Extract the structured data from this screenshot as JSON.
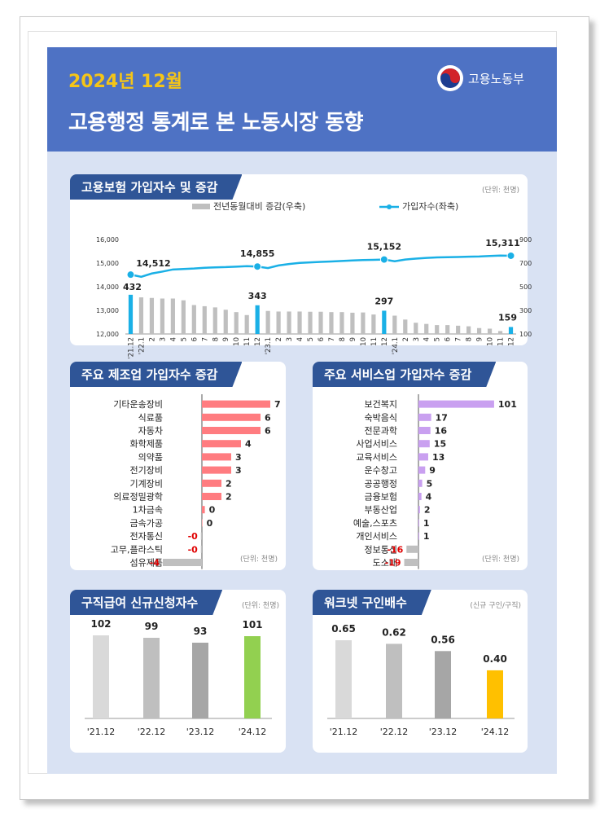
{
  "header": {
    "date": "2024년 12월",
    "title": "고용행정 통계로 본 노동시장 동향",
    "ministry": "고용노동부"
  },
  "colors": {
    "header_bg": "#4e72c4",
    "body_bg": "#d9e2f3",
    "tag_bg": "#2f5597",
    "date_yellow": "#f4c518",
    "line_blue": "#1ab0e6",
    "bar_gray": "#bfbfbf",
    "highlight_blue": "#1ab0e6",
    "mfg_red": "#ff7c80",
    "svc_purple": "#c9a0f0",
    "neg_gray": "#bfbfbf",
    "green": "#92d050",
    "orange": "#ffc000"
  },
  "sections": {
    "insurance": {
      "title": "고용보험 가입자수 및 증감",
      "unit": "(단위: 천명)"
    },
    "manufacturing": {
      "title": "주요 제조업 가입자수 증감",
      "unit": "(단위: 천명)"
    },
    "services": {
      "title": "주요 서비스업 가입자수 증감",
      "unit": "(단위: 천명)"
    },
    "jobseeker": {
      "title": "구직급여 신규신청자수",
      "unit": "(단위: 천명)"
    },
    "worknet": {
      "title": "워크넷 구인배수",
      "unit": "(신규 구인/구직)"
    }
  },
  "chart_data": [
    {
      "type": "bar+line",
      "title": "고용보험 가입자수 및 증감",
      "legend": [
        "전년동월대비 증감(우축)",
        "가입자수(좌축)"
      ],
      "x": [
        "'21.12",
        "'22.1",
        "2",
        "3",
        "4",
        "5",
        "6",
        "7",
        "8",
        "9",
        "10",
        "11",
        "12",
        "'23.1",
        "2",
        "3",
        "4",
        "5",
        "6",
        "7",
        "8",
        "9",
        "10",
        "11",
        "12",
        "'24.1",
        "2",
        "3",
        "4",
        "5",
        "6",
        "7",
        "8",
        "9",
        "10",
        "11",
        "12"
      ],
      "left_axis": {
        "ticks": [
          "16,000",
          "15,000",
          "14,000",
          "13,000",
          "12,000"
        ],
        "range": [
          12000,
          16000
        ]
      },
      "right_axis": {
        "ticks": [
          "900",
          "700",
          "500",
          "300",
          "100"
        ],
        "range": [
          100,
          900
        ]
      },
      "increase": [
        432,
        410,
        405,
        400,
        400,
        385,
        345,
        335,
        325,
        305,
        285,
        260,
        343,
        295,
        290,
        290,
        290,
        288,
        288,
        285,
        285,
        280,
        282,
        265,
        297,
        255,
        222,
        195,
        185,
        175,
        175,
        170,
        165,
        150,
        145,
        125,
        159
      ],
      "subscribers": [
        14512,
        14420,
        14560,
        14640,
        14730,
        14750,
        14770,
        14800,
        14820,
        14830,
        14850,
        14870,
        14855,
        14790,
        14900,
        14960,
        15010,
        15030,
        15050,
        15070,
        15090,
        15110,
        15130,
        15140,
        15152,
        15080,
        15150,
        15190,
        15220,
        15240,
        15250,
        15260,
        15270,
        15280,
        15300,
        15320,
        15311
      ],
      "labels": [
        {
          "text": "14,512"
        },
        {
          "text": "14,855"
        },
        {
          "text": "15,152"
        },
        {
          "text": "15,311"
        },
        {
          "text": "432"
        },
        {
          "text": "343"
        },
        {
          "text": "297"
        },
        {
          "text": "159"
        }
      ]
    },
    {
      "type": "bar",
      "title": "주요 제조업 가입자수 증감",
      "categories": [
        "기타운송장비",
        "식료품",
        "자동차",
        "화학제품",
        "의약품",
        "전기장비",
        "기계장비",
        "의료정밀광학",
        "1차금속",
        "금속가공",
        "전자통신",
        "고무,플라스틱",
        "섬유제품"
      ],
      "values": [
        7,
        6,
        6,
        4,
        3,
        3,
        2,
        2,
        0.3,
        0.05,
        -0.1,
        -0.1,
        -4
      ],
      "value_labels": [
        "7",
        "6",
        "6",
        "4",
        "3",
        "3",
        "2",
        "2",
        "0",
        "0",
        "-0",
        "-0",
        "-4"
      ]
    },
    {
      "type": "bar",
      "title": "주요 서비스업 가입자수 증감",
      "categories": [
        "보건복지",
        "숙박음식",
        "전문과학",
        "사업서비스",
        "교육서비스",
        "운수창고",
        "공공행정",
        "금융보험",
        "부동산업",
        "예술,스포츠",
        "개인서비스",
        "정보통신",
        "도소매"
      ],
      "values": [
        101,
        17,
        16,
        15,
        13,
        9,
        5,
        4,
        2,
        1,
        1,
        -16,
        -19
      ],
      "value_labels": [
        "101",
        "17",
        "16",
        "15",
        "13",
        "9",
        "5",
        "4",
        "2",
        "1",
        "1",
        "-16",
        "-19"
      ]
    },
    {
      "type": "bar",
      "title": "구직급여 신규신청자수",
      "categories": [
        "'21.12",
        "'22.12",
        "'23.12",
        "'24.12"
      ],
      "values": [
        102,
        99,
        93,
        101
      ],
      "value_labels": [
        "102",
        "99",
        "93",
        "101"
      ]
    },
    {
      "type": "bar",
      "title": "워크넷 구인배수",
      "categories": [
        "'21.12",
        "'22.12",
        "'23.12",
        "'24.12"
      ],
      "values": [
        0.65,
        0.62,
        0.56,
        0.4
      ],
      "value_labels": [
        "0.65",
        "0.62",
        "0.56",
        "0.40"
      ]
    }
  ]
}
